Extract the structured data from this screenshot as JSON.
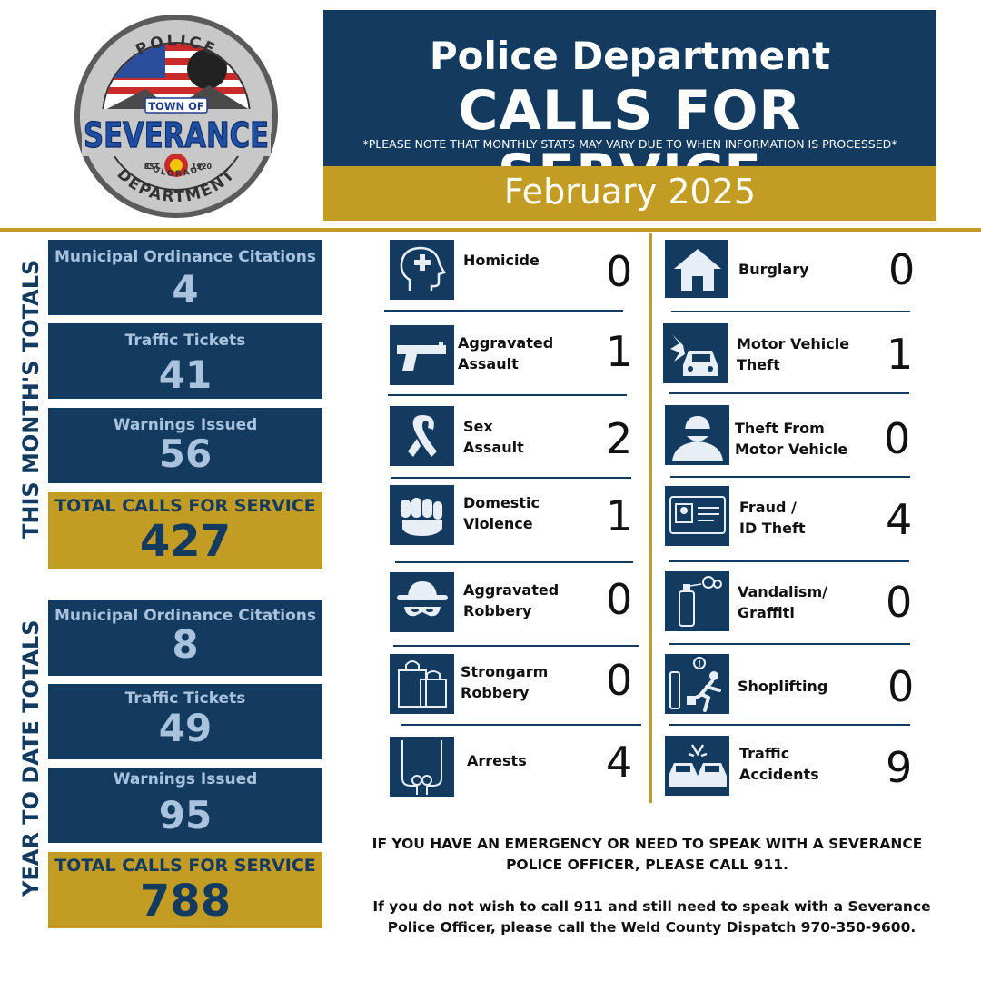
{
  "logo": {
    "top_text": "POLICE",
    "town_of": "TOWN OF",
    "name": "SEVERANCE",
    "est": "EST.",
    "year": "1920",
    "state": "COLORADO",
    "bottom_text": "DEPARTMENT"
  },
  "header": {
    "line1": "Police Department",
    "line2": "CALLS FOR SERVICE",
    "note": "*PLEASE NOTE THAT MONTHLY STATS MAY VARY DUE TO WHEN INFORMATION IS PROCESSED*",
    "month": "February 2025"
  },
  "month_totals": {
    "section_label": "THIS MONTH'S TOTALS",
    "citations_label": "Municipal Ordinance Citations",
    "citations": "4",
    "tickets_label": "Traffic Tickets",
    "tickets": "41",
    "warnings_label": "Warnings Issued",
    "warnings": "56",
    "total_label": "TOTAL CALLS FOR SERVICE",
    "total": "427"
  },
  "ytd_totals": {
    "section_label": "YEAR TO DATE TOTALS",
    "citations_label": "Municipal Ordinance Citations",
    "citations": "8",
    "tickets_label": "Traffic Tickets",
    "tickets": "49",
    "warnings_label": "Warnings Issued",
    "warnings": "95",
    "total_label": "TOTAL CALLS FOR SERVICE",
    "total": "788"
  },
  "crimes_left": [
    {
      "label": "Homicide",
      "count": "0",
      "icon": "head-medical-icon"
    },
    {
      "label": "Aggravated\nAssault",
      "count": "1",
      "icon": "handgun-icon"
    },
    {
      "label": "Sex\nAssault",
      "count": "2",
      "icon": "awareness-ribbon-icon"
    },
    {
      "label": "Domestic\nViolence",
      "count": "1",
      "icon": "fist-icon"
    },
    {
      "label": "Aggravated\nRobbery",
      "count": "0",
      "icon": "masked-robber-icon"
    },
    {
      "label": "Strongarm\nRobbery",
      "count": "0",
      "icon": "shopping-bags-icon"
    },
    {
      "label": "Arrests",
      "count": "4",
      "icon": "handcuffs-icon"
    }
  ],
  "crimes_right": [
    {
      "label": "Burglary",
      "count": "0",
      "icon": "house-icon"
    },
    {
      "label": "Motor Vehicle\nTheft",
      "count": "1",
      "icon": "car-crash-icon"
    },
    {
      "label": "Theft From\nMotor Vehicle",
      "count": "0",
      "icon": "thief-icon"
    },
    {
      "label": "Fraud /\n ID Theft",
      "count": "4",
      "icon": "id-card-icon"
    },
    {
      "label": "Vandalism/\nGraffiti",
      "count": "0",
      "icon": "spray-can-icon"
    },
    {
      "label": "Shoplifting",
      "count": "0",
      "icon": "shoplifter-icon"
    },
    {
      "label": "Traffic\nAccidents",
      "count": "9",
      "icon": "car-collision-icon"
    }
  ],
  "footer": {
    "emergency": "IF YOU HAVE AN EMERGENCY OR NEED TO SPEAK WITH A SEVERANCE POLICE OFFICER, PLEASE CALL 911.",
    "non_emergency": "If you do not wish to call 911 and still need to speak with a Severance Police Officer, please call the Weld County Dispatch 970-350-9600."
  },
  "colors": {
    "navy": "#133b5f",
    "gold": "#c29c23",
    "light_blue_text": "#a9c2dd"
  }
}
